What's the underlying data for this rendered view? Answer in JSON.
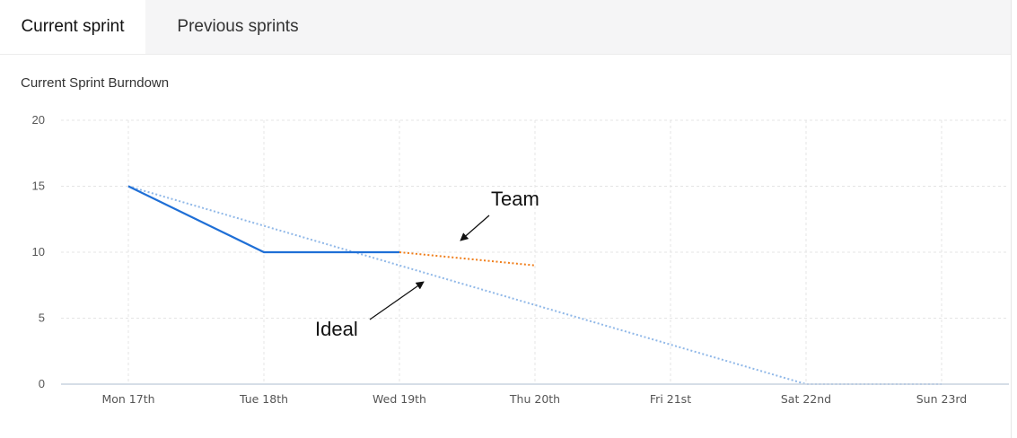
{
  "tabs": {
    "current_label": "Current sprint",
    "previous_label": "Previous sprints"
  },
  "chart_data": {
    "type": "line",
    "title": "Current Sprint Burndown",
    "xlabel": "",
    "ylabel": "",
    "categories": [
      "Mon 17th",
      "Tue 18th",
      "Wed 19th",
      "Thu 20th",
      "Fri 21st",
      "Sat 22nd",
      "Sun 23rd"
    ],
    "yticks": [
      0,
      5,
      10,
      15,
      20
    ],
    "ylim": [
      0,
      20
    ],
    "grid": true,
    "series": [
      {
        "key": "ideal",
        "style": "dotted",
        "color": "#90b8e8",
        "values": [
          15,
          12,
          9,
          6,
          3,
          0,
          0
        ]
      },
      {
        "key": "actual",
        "style": "solid",
        "color": "#1f6fd6",
        "values": [
          15,
          10,
          10,
          null,
          null,
          null,
          null
        ]
      },
      {
        "key": "team",
        "style": "dotted",
        "color": "#f07f1c",
        "values": [
          null,
          null,
          10,
          9,
          null,
          null,
          null
        ]
      }
    ],
    "annotations": [
      {
        "text": "Team",
        "points_to": "team"
      },
      {
        "text": "Ideal",
        "points_to": "ideal"
      }
    ]
  }
}
